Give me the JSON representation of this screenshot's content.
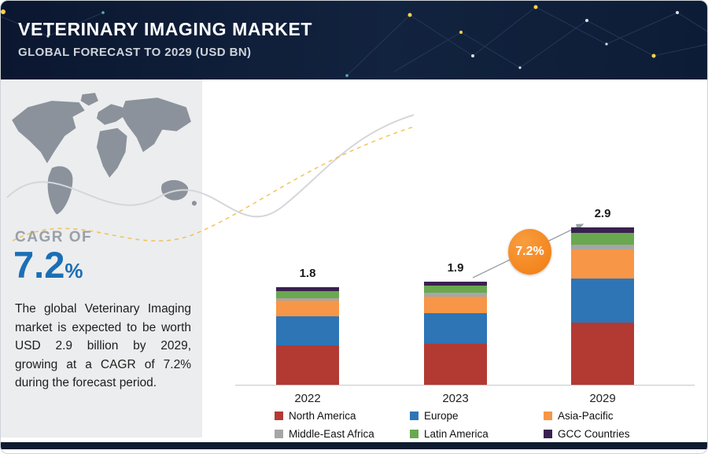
{
  "header": {
    "title": "VETERINARY IMAGING MARKET",
    "subtitle": "GLOBAL FORECAST TO 2029 (USD BN)"
  },
  "left_panel": {
    "cagr_label": "CAGR OF",
    "cagr_value": "7.2",
    "cagr_percent_sign": "%",
    "description": "The global Veterinary Imaging market is expected to be worth USD 2.9 billion by 2029, growing at a CAGR of 7.2% during the forecast period."
  },
  "badge": {
    "label": "7.2%",
    "color": "#f6821f"
  },
  "chart_data": {
    "type": "bar",
    "stacked": true,
    "title": "Veterinary Imaging Market, Global Forecast to 2029 (USD BN)",
    "categories": [
      "2022",
      "2023",
      "2029"
    ],
    "totals": [
      1.8,
      1.9,
      2.9
    ],
    "series": [
      {
        "name": "North America",
        "color": "#b23a33",
        "values": [
          0.72,
          0.76,
          1.15
        ]
      },
      {
        "name": "Europe",
        "color": "#2e75b6",
        "values": [
          0.54,
          0.56,
          0.8
        ]
      },
      {
        "name": "Asia-Pacific",
        "color": "#f79646",
        "values": [
          0.29,
          0.31,
          0.55
        ]
      },
      {
        "name": "Middle-East Africa",
        "color": "#a6a6a6",
        "values": [
          0.05,
          0.06,
          0.08
        ]
      },
      {
        "name": "Latin America",
        "color": "#6aa84f",
        "values": [
          0.12,
          0.13,
          0.22
        ]
      },
      {
        "name": "GCC Countries",
        "color": "#3a2150",
        "values": [
          0.08,
          0.08,
          0.1
        ]
      }
    ],
    "xlabel": "",
    "ylabel": "",
    "ylim": [
      0,
      3
    ],
    "grid": false,
    "legend_position": "bottom"
  }
}
